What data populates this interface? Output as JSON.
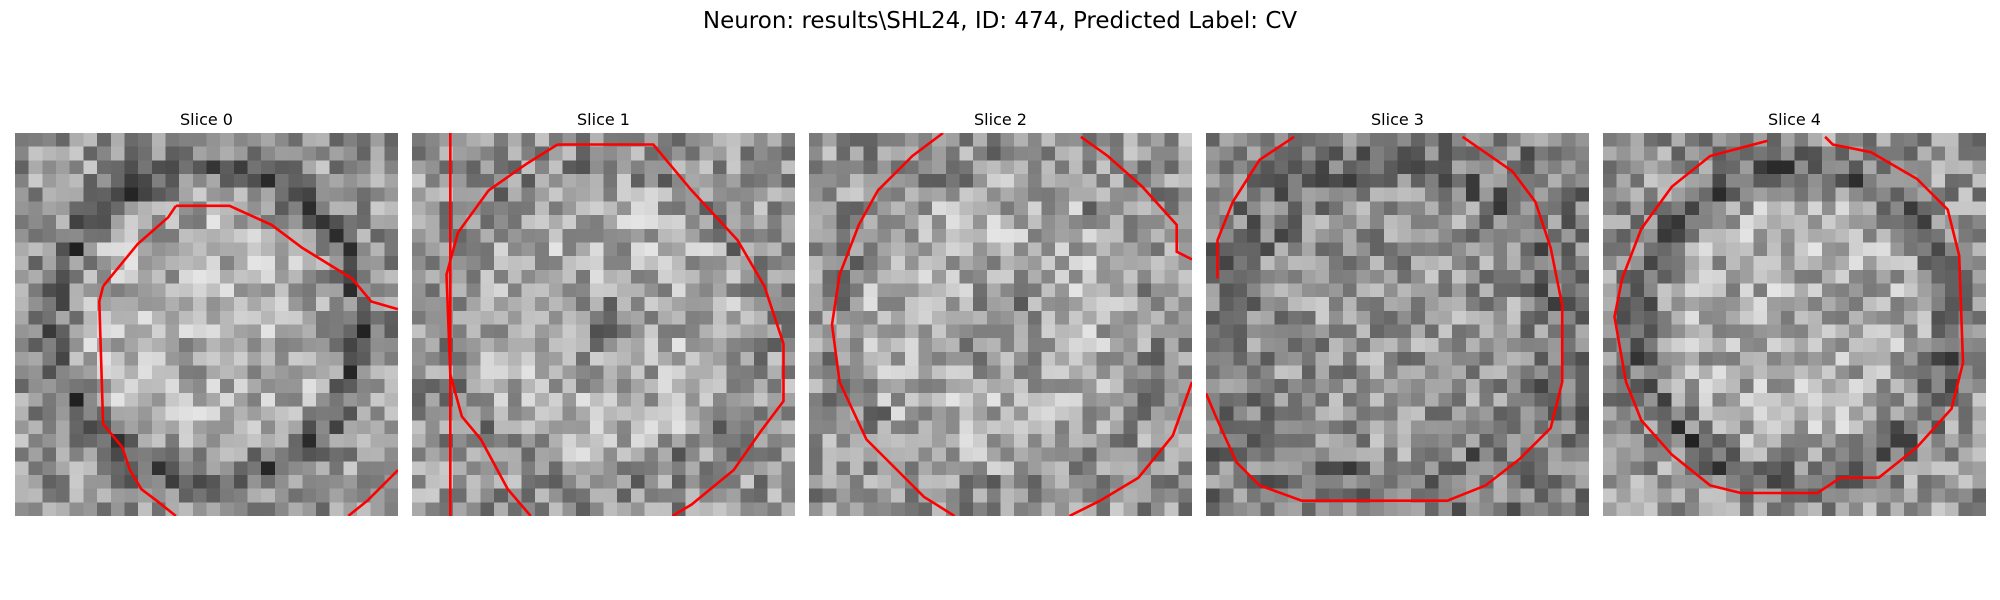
{
  "suptitle": "Neuron: results\\SHL24, ID: 474, Predicted Label: CV",
  "contour_color": "#ff0000",
  "panels": [
    {
      "title": "Slice 0",
      "seed": 11,
      "dark_ring": 0.95,
      "dark_center": 0.0,
      "contour": [
        [
          0.42,
          0.19
        ],
        [
          0.56,
          0.19
        ],
        [
          0.67,
          0.24
        ],
        [
          0.75,
          0.3
        ],
        [
          0.88,
          0.38
        ],
        [
          0.93,
          0.44
        ],
        [
          1.0,
          0.46
        ]
      ],
      "contour2": [
        [
          0.23,
          0.4
        ],
        [
          0.22,
          0.44
        ],
        [
          0.23,
          0.76
        ],
        [
          0.28,
          0.82
        ],
        [
          0.3,
          0.88
        ],
        [
          0.33,
          0.93
        ],
        [
          0.37,
          0.96
        ],
        [
          0.42,
          1.0
        ]
      ],
      "contour3": [
        [
          0.87,
          1.0
        ],
        [
          0.92,
          0.96
        ],
        [
          1.0,
          0.88
        ]
      ],
      "contour_bridge": [
        [
          0.23,
          0.4
        ],
        [
          0.32,
          0.29
        ],
        [
          0.4,
          0.22
        ],
        [
          0.42,
          0.19
        ]
      ]
    },
    {
      "title": "Slice 1",
      "seed": 23,
      "dark_ring": 0.2,
      "dark_center": 0.55,
      "contour": [
        [
          0.1,
          1.0
        ],
        [
          0.1,
          0.0
        ]
      ],
      "contour_main": [
        [
          0.38,
          0.03
        ],
        [
          0.63,
          0.03
        ],
        [
          0.73,
          0.15
        ],
        [
          0.85,
          0.28
        ],
        [
          0.92,
          0.4
        ],
        [
          0.97,
          0.55
        ],
        [
          0.97,
          0.7
        ],
        [
          0.91,
          0.78
        ],
        [
          0.84,
          0.88
        ],
        [
          0.73,
          0.97
        ],
        [
          0.68,
          1.0
        ]
      ],
      "contour_left": [
        [
          0.31,
          1.0
        ],
        [
          0.25,
          0.93
        ],
        [
          0.18,
          0.8
        ],
        [
          0.13,
          0.74
        ],
        [
          0.1,
          0.63
        ],
        [
          0.09,
          0.37
        ],
        [
          0.12,
          0.26
        ],
        [
          0.2,
          0.15
        ],
        [
          0.3,
          0.08
        ],
        [
          0.38,
          0.03
        ]
      ]
    },
    {
      "title": "Slice 2",
      "seed": 37,
      "dark_ring": 0.15,
      "dark_center": 0.75,
      "contour_main": [
        [
          0.35,
          0.0
        ],
        [
          0.27,
          0.06
        ],
        [
          0.18,
          0.15
        ],
        [
          0.13,
          0.24
        ],
        [
          0.08,
          0.37
        ],
        [
          0.06,
          0.5
        ],
        [
          0.08,
          0.65
        ],
        [
          0.15,
          0.8
        ],
        [
          0.23,
          0.88
        ],
        [
          0.3,
          0.95
        ],
        [
          0.38,
          1.0
        ]
      ],
      "contour_right": [
        [
          0.71,
          0.01
        ],
        [
          0.78,
          0.06
        ],
        [
          0.87,
          0.14
        ],
        [
          0.96,
          0.24
        ],
        [
          0.96,
          0.31
        ],
        [
          1.0,
          0.33
        ]
      ],
      "contour_br": [
        [
          0.68,
          1.0
        ],
        [
          0.76,
          0.96
        ],
        [
          0.86,
          0.9
        ],
        [
          0.95,
          0.79
        ],
        [
          1.0,
          0.65
        ]
      ]
    },
    {
      "title": "Slice 3",
      "seed": 51,
      "dark_ring": 0.25,
      "dark_center": 0.0,
      "darker": true,
      "contour_main": [
        [
          0.23,
          0.01
        ],
        [
          0.14,
          0.07
        ],
        [
          0.07,
          0.18
        ],
        [
          0.03,
          0.28
        ],
        [
          0.03,
          0.38
        ]
      ],
      "contour_right": [
        [
          0.67,
          0.01
        ],
        [
          0.8,
          0.1
        ],
        [
          0.86,
          0.18
        ],
        [
          0.9,
          0.3
        ],
        [
          0.93,
          0.45
        ],
        [
          0.93,
          0.65
        ],
        [
          0.9,
          0.77
        ],
        [
          0.82,
          0.85
        ],
        [
          0.73,
          0.92
        ],
        [
          0.63,
          0.96
        ],
        [
          0.25,
          0.96
        ],
        [
          0.14,
          0.92
        ],
        [
          0.08,
          0.86
        ],
        [
          0.03,
          0.75
        ],
        [
          0.0,
          0.68
        ]
      ]
    },
    {
      "title": "Slice 4",
      "seed": 67,
      "dark_ring": 0.9,
      "dark_center": 0.0,
      "contour_main": [
        [
          0.43,
          0.02
        ],
        [
          0.28,
          0.06
        ],
        [
          0.18,
          0.14
        ],
        [
          0.1,
          0.25
        ],
        [
          0.05,
          0.38
        ],
        [
          0.03,
          0.48
        ],
        [
          0.06,
          0.65
        ],
        [
          0.1,
          0.75
        ],
        [
          0.18,
          0.84
        ],
        [
          0.28,
          0.92
        ],
        [
          0.36,
          0.94
        ],
        [
          0.56,
          0.94
        ],
        [
          0.62,
          0.9
        ],
        [
          0.72,
          0.9
        ],
        [
          0.82,
          0.82
        ],
        [
          0.91,
          0.72
        ],
        [
          0.94,
          0.6
        ],
        [
          0.93,
          0.32
        ],
        [
          0.9,
          0.2
        ],
        [
          0.82,
          0.12
        ],
        [
          0.7,
          0.05
        ],
        [
          0.6,
          0.03
        ],
        [
          0.58,
          0.01
        ]
      ]
    }
  ]
}
